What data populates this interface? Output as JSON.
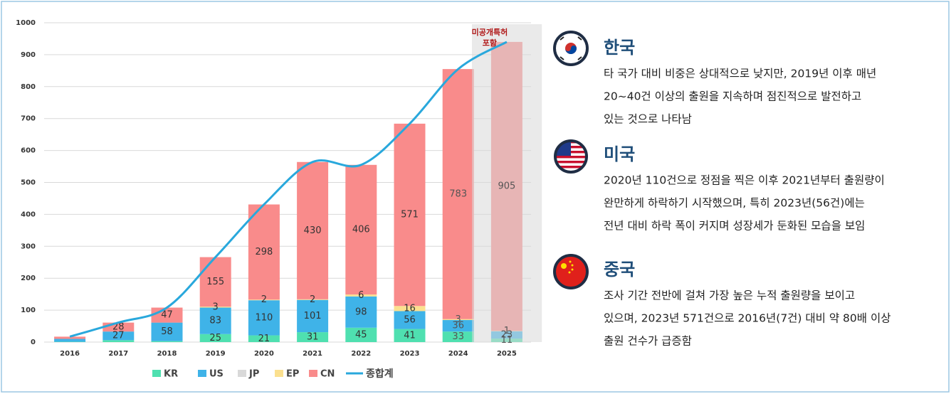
{
  "chart_data": {
    "type": "stacked_bar_line",
    "categories": [
      "2016",
      "2017",
      "2018",
      "2019",
      "2020",
      "2021",
      "2022",
      "2023",
      "2024",
      "2025"
    ],
    "ylim": [
      0,
      1000
    ],
    "yticks": [
      0,
      100,
      200,
      300,
      400,
      500,
      600,
      700,
      800,
      900,
      1000
    ],
    "grid": true,
    "series": [
      {
        "name": "KR",
        "color": "#4fe0b0",
        "values": [
          1,
          6,
          3,
          25,
          21,
          31,
          45,
          41,
          33,
          11
        ],
        "value_labels": [
          null,
          null,
          null,
          "25",
          "21",
          "31",
          "45",
          "41",
          "33",
          "11"
        ]
      },
      {
        "name": "US",
        "color": "#3fb3e8",
        "values": [
          9,
          27,
          58,
          83,
          110,
          101,
          98,
          56,
          36,
          23
        ],
        "value_labels": [
          null,
          "27",
          "58",
          "83",
          "110",
          "101",
          "98",
          "56",
          "36",
          "23"
        ]
      },
      {
        "name": "JP",
        "color": "#d9d9d9",
        "values": [
          0,
          0,
          0,
          0,
          0,
          0,
          0,
          0,
          0,
          0
        ],
        "value_labels": [
          null,
          null,
          null,
          null,
          null,
          null,
          null,
          null,
          null,
          null
        ]
      },
      {
        "name": "EP",
        "color": "#fbe08f",
        "values": [
          0,
          0,
          0,
          3,
          2,
          2,
          6,
          16,
          3,
          1
        ],
        "value_labels": [
          null,
          null,
          null,
          "3",
          "2",
          "2",
          "6",
          "16",
          "3",
          "1"
        ]
      },
      {
        "name": "CN",
        "color": "#f98b8b",
        "values": [
          7,
          28,
          47,
          155,
          298,
          430,
          406,
          571,
          783,
          905
        ],
        "value_labels": [
          null,
          "28",
          "47",
          "155",
          "298",
          "430",
          "406",
          "571",
          "783",
          "905"
        ]
      }
    ],
    "line_series": {
      "name": "종합계",
      "color": "#29a8dc",
      "values": [
        17,
        61,
        108,
        266,
        431,
        564,
        555,
        684,
        855,
        940
      ]
    },
    "annotation": [
      "미공개특허",
      "포함"
    ]
  },
  "notes": [
    {
      "title": "한국",
      "lines": [
        "타 국가 대비 비중은 상대적으로 낮지만, 2019년 이후 매년",
        "20~40건 이상의 출원을 지속하며 점진적으로 발전하고",
        "있는 것으로 나타남"
      ]
    },
    {
      "title": "미국",
      "lines": [
        "2020년 110건으로 정점을 찍은 이후 2021년부터 출원량이",
        "완만하게 하락하기 시작했으며, 특히 2023년(56건)에는",
        "전년 대비 하락 폭이 커지며 성장세가 둔화된 모습을 보임"
      ]
    },
    {
      "title": "중국",
      "lines": [
        "조사 기간 전반에 걸쳐 가장 높은 누적 출원량을 보이고",
        "있으며, 2023년 571건으로 2016년(7건) 대비 약 80배 이상",
        "출원 건수가 급증함"
      ]
    }
  ]
}
